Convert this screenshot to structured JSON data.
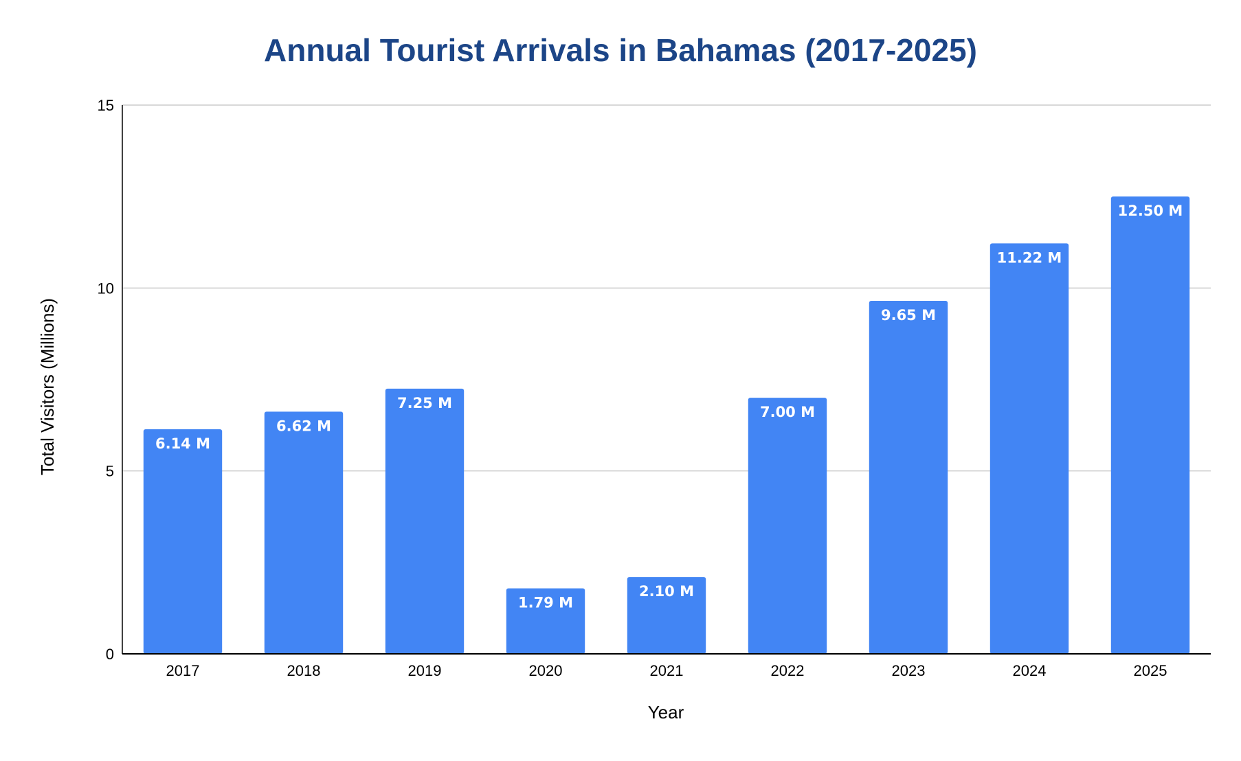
{
  "chart_data": {
    "type": "bar",
    "title": "Annual Tourist Arrivals in Bahamas (2017-2025)",
    "xlabel": "Year",
    "ylabel": "Total Visitors (Millions)",
    "categories": [
      "2017",
      "2018",
      "2019",
      "2020",
      "2021",
      "2022",
      "2023",
      "2024",
      "2025"
    ],
    "values": [
      6.14,
      6.62,
      7.25,
      1.79,
      2.1,
      7.0,
      9.65,
      11.22,
      12.5
    ],
    "data_labels": [
      "6.14 M",
      "6.62 M",
      "7.25 M",
      "1.79 M",
      "2.10 M",
      "7.00 M",
      "9.65 M",
      "11.22 M",
      "12.50 M"
    ],
    "ylim": [
      0,
      15
    ],
    "yticks": [
      0,
      5,
      10,
      15
    ],
    "grid": true,
    "legend": "none",
    "colors": {
      "bar": "#4285f4",
      "title": "#1c4587",
      "grid": "#cccccc",
      "axis": "#000000",
      "data_label": "#ffffff"
    }
  }
}
